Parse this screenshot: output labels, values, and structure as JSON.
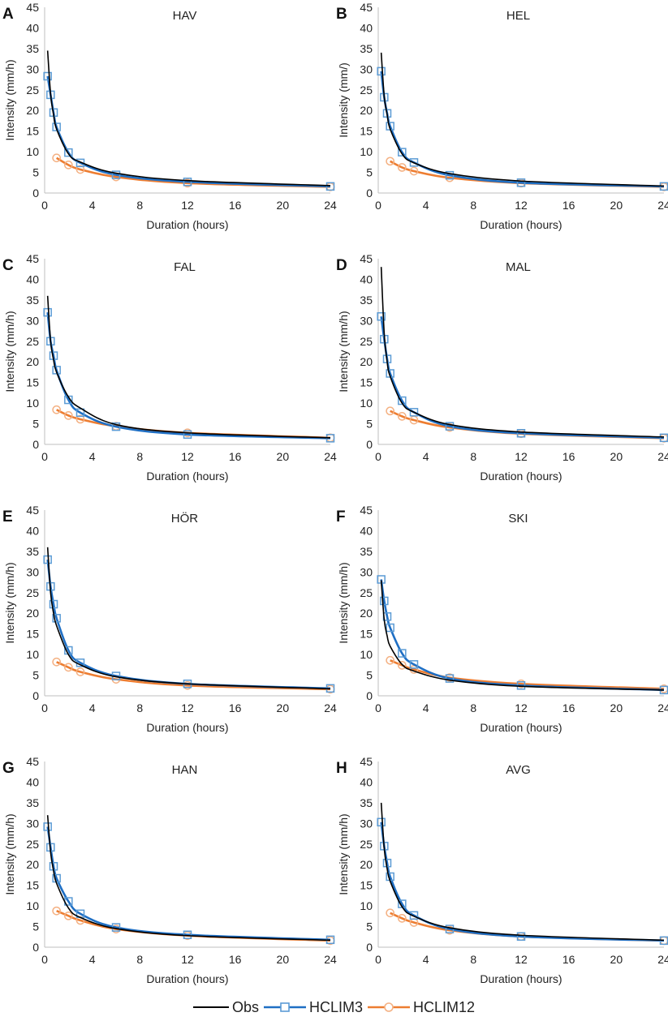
{
  "colors": {
    "obs": "#000000",
    "hclim3": "#1f6fc4",
    "hclim3_marker": "#5b9bd5",
    "hclim12": "#ed7d31",
    "hclim12_marker": "#f4b183",
    "axis": "#bfbfbf"
  },
  "axis_labels": {
    "x": "Duration (hours)",
    "y": "Intensity (mm/h)"
  },
  "legend": [
    {
      "key": "obs",
      "label": "Obs"
    },
    {
      "key": "hclim3",
      "label": "HCLIM3"
    },
    {
      "key": "hclim12",
      "label": "HCLIM12"
    }
  ],
  "chart_data": [
    {
      "type": "line",
      "panel": "A",
      "title": "HAV",
      "xlabel": "Duration (hours)",
      "ylabel": "Intensity (mm/h)",
      "xlim": [
        0,
        24
      ],
      "ylim": [
        0,
        45
      ],
      "xticks": [
        0,
        4,
        8,
        12,
        16,
        20,
        24
      ],
      "yticks": [
        0,
        5,
        10,
        15,
        20,
        25,
        30,
        35,
        40,
        45
      ],
      "series": [
        {
          "name": "Obs",
          "key": "obs",
          "x": [
            0.25,
            0.5,
            0.75,
            1,
            2,
            3,
            6,
            12,
            24
          ],
          "y": [
            34.5,
            24,
            19,
            15.5,
            9.5,
            7.5,
            4.8,
            3.0,
            1.8
          ]
        },
        {
          "name": "HCLIM3",
          "key": "hclim3",
          "x": [
            0.25,
            0.5,
            0.75,
            1,
            2,
            3,
            6,
            12,
            24
          ],
          "y": [
            28.3,
            23.8,
            19.5,
            16.0,
            9.8,
            7.3,
            4.4,
            2.7,
            1.6
          ]
        },
        {
          "name": "HCLIM12",
          "key": "hclim12",
          "x": [
            1,
            2,
            3,
            6,
            12,
            24
          ],
          "y": [
            8.5,
            6.8,
            5.7,
            3.9,
            2.4,
            1.5
          ]
        }
      ]
    },
    {
      "type": "line",
      "panel": "B",
      "title": "HEL",
      "xlabel": "Duration (hours)",
      "ylabel": "Intensity (mm/)",
      "xlim": [
        0,
        24
      ],
      "ylim": [
        0,
        45
      ],
      "xticks": [
        0,
        4,
        8,
        12,
        16,
        20,
        24
      ],
      "yticks": [
        0,
        5,
        10,
        15,
        20,
        25,
        30,
        35,
        40,
        45
      ],
      "series": [
        {
          "name": "Obs",
          "key": "obs",
          "x": [
            0.25,
            0.5,
            0.75,
            1,
            2,
            3,
            6,
            12,
            24
          ],
          "y": [
            34,
            23.5,
            19,
            15.5,
            9.5,
            7.3,
            4.7,
            2.9,
            1.7
          ]
        },
        {
          "name": "HCLIM3",
          "key": "hclim3",
          "x": [
            0.25,
            0.5,
            0.75,
            1,
            2,
            3,
            6,
            12,
            24
          ],
          "y": [
            29.5,
            23.2,
            19.3,
            16.2,
            9.9,
            7.4,
            4.3,
            2.5,
            1.6
          ]
        },
        {
          "name": "HCLIM12",
          "key": "hclim12",
          "x": [
            1,
            2,
            3,
            6,
            12,
            24
          ],
          "y": [
            7.7,
            6.2,
            5.3,
            3.7,
            2.4,
            1.5
          ]
        }
      ]
    },
    {
      "type": "line",
      "panel": "C",
      "title": "FAL",
      "xlabel": "Duration (hours)",
      "ylabel": "Intensity (mm/h)",
      "xlim": [
        0,
        24
      ],
      "ylim": [
        0,
        45
      ],
      "xticks": [
        0,
        4,
        8,
        12,
        16,
        20,
        24
      ],
      "yticks": [
        0,
        5,
        10,
        15,
        20,
        25,
        30,
        35,
        40,
        45
      ],
      "series": [
        {
          "name": "Obs",
          "key": "obs",
          "x": [
            0.25,
            0.5,
            0.75,
            1,
            2,
            3,
            6,
            12,
            24
          ],
          "y": [
            36,
            25,
            20.5,
            17.5,
            11.5,
            8.8,
            4.8,
            2.8,
            1.6
          ]
        },
        {
          "name": "HCLIM3",
          "key": "hclim3",
          "x": [
            0.25,
            0.5,
            0.75,
            1,
            2,
            3,
            6,
            12,
            24
          ],
          "y": [
            32,
            25,
            21.5,
            18,
            10.8,
            7.7,
            4.3,
            2.4,
            1.5
          ]
        },
        {
          "name": "HCLIM12",
          "key": "hclim12",
          "x": [
            1,
            2,
            3,
            6,
            12,
            24
          ],
          "y": [
            8.4,
            7.0,
            6.1,
            4.4,
            2.8,
            1.6
          ]
        }
      ]
    },
    {
      "type": "line",
      "panel": "D",
      "title": "MAL",
      "xlabel": "Duration (hours)",
      "ylabel": "Intensity (mm/h)",
      "xlim": [
        0,
        24
      ],
      "ylim": [
        0,
        45
      ],
      "xticks": [
        0,
        4,
        8,
        12,
        16,
        20,
        24
      ],
      "yticks": [
        0,
        5,
        10,
        15,
        20,
        25,
        30,
        35,
        40,
        45
      ],
      "series": [
        {
          "name": "Obs",
          "key": "obs",
          "x": [
            0.25,
            0.5,
            0.75,
            1,
            2,
            3,
            6,
            12,
            24
          ],
          "y": [
            43,
            27,
            20,
            16.5,
            10,
            7.8,
            4.8,
            3.0,
            1.8
          ]
        },
        {
          "name": "HCLIM3",
          "key": "hclim3",
          "x": [
            0.25,
            0.5,
            0.75,
            1,
            2,
            3,
            6,
            12,
            24
          ],
          "y": [
            31,
            25.5,
            20.7,
            17.2,
            10.6,
            7.8,
            4.4,
            2.7,
            1.6
          ]
        },
        {
          "name": "HCLIM12",
          "key": "hclim12",
          "x": [
            1,
            2,
            3,
            6,
            12,
            24
          ],
          "y": [
            8.1,
            6.8,
            5.9,
            4.1,
            2.6,
            1.5
          ]
        }
      ]
    },
    {
      "type": "line",
      "panel": "E",
      "title": "HÖR",
      "xlabel": "Duration (hours)",
      "ylabel": "Intensity (mm/h)",
      "xlim": [
        0,
        24
      ],
      "ylim": [
        0,
        45
      ],
      "xticks": [
        0,
        4,
        8,
        12,
        16,
        20,
        24
      ],
      "yticks": [
        0,
        5,
        10,
        15,
        20,
        25,
        30,
        35,
        40,
        45
      ],
      "series": [
        {
          "name": "Obs",
          "key": "obs",
          "x": [
            0.25,
            0.5,
            0.75,
            1,
            2,
            3,
            6,
            12,
            24
          ],
          "y": [
            36,
            25,
            20,
            17,
            10,
            7.5,
            4.6,
            2.9,
            1.7
          ]
        },
        {
          "name": "HCLIM3",
          "key": "hclim3",
          "x": [
            0.25,
            0.5,
            0.75,
            1,
            2,
            3,
            6,
            12,
            24
          ],
          "y": [
            33,
            26.5,
            22.2,
            18.8,
            11,
            8,
            4.8,
            2.9,
            1.8
          ]
        },
        {
          "name": "HCLIM12",
          "key": "hclim12",
          "x": [
            1,
            2,
            3,
            6,
            12,
            24
          ],
          "y": [
            8.2,
            6.9,
            5.8,
            4.0,
            2.5,
            1.6
          ]
        }
      ]
    },
    {
      "type": "line",
      "panel": "F",
      "title": "SKI",
      "xlabel": "Duration (hours)",
      "ylabel": "Intensity (mm/h)",
      "xlim": [
        0,
        24
      ],
      "ylim": [
        0,
        45
      ],
      "xticks": [
        0,
        4,
        8,
        12,
        16,
        20,
        24
      ],
      "yticks": [
        0,
        5,
        10,
        15,
        20,
        25,
        30,
        35,
        40,
        45
      ],
      "series": [
        {
          "name": "Obs",
          "key": "obs",
          "x": [
            0.25,
            0.5,
            0.75,
            1,
            2,
            3,
            6,
            12,
            24
          ],
          "y": [
            28,
            18.5,
            14.5,
            12,
            7.6,
            6.0,
            3.8,
            2.3,
            1.4
          ]
        },
        {
          "name": "HCLIM3",
          "key": "hclim3",
          "x": [
            0.25,
            0.5,
            0.75,
            1,
            2,
            3,
            6,
            12,
            24
          ],
          "y": [
            28.2,
            23,
            19.2,
            16.5,
            10.3,
            7.6,
            4.2,
            2.5,
            1.4
          ]
        },
        {
          "name": "HCLIM12",
          "key": "hclim12",
          "x": [
            1,
            2,
            3,
            6,
            12,
            24
          ],
          "y": [
            8.6,
            7.4,
            6.4,
            4.4,
            2.9,
            1.7
          ]
        }
      ]
    },
    {
      "type": "line",
      "panel": "G",
      "title": "HAN",
      "xlabel": "Duration (hours)",
      "ylabel": "Intensity (mm/h)",
      "xlim": [
        0,
        24
      ],
      "ylim": [
        0,
        45
      ],
      "xticks": [
        0,
        4,
        8,
        12,
        16,
        20,
        24
      ],
      "yticks": [
        0,
        5,
        10,
        15,
        20,
        25,
        30,
        35,
        40,
        45
      ],
      "series": [
        {
          "name": "Obs",
          "key": "obs",
          "x": [
            0.25,
            0.5,
            0.75,
            1,
            2,
            3,
            6,
            12,
            24
          ],
          "y": [
            32,
            23,
            18.5,
            15.5,
            9.5,
            7.2,
            4.5,
            2.8,
            1.7
          ]
        },
        {
          "name": "HCLIM3",
          "key": "hclim3",
          "x": [
            0.25,
            0.5,
            0.75,
            1,
            2,
            3,
            6,
            12,
            24
          ],
          "y": [
            29.2,
            24.2,
            19.6,
            16.7,
            11.1,
            8.1,
            4.8,
            3.0,
            1.8
          ]
        },
        {
          "name": "HCLIM12",
          "key": "hclim12",
          "x": [
            1,
            2,
            3,
            6,
            12,
            24
          ],
          "y": [
            8.8,
            7.6,
            6.5,
            4.4,
            2.8,
            1.6
          ]
        }
      ]
    },
    {
      "type": "line",
      "panel": "H",
      "title": "AVG",
      "xlabel": "Duration (hours)",
      "ylabel": "Intensity (mm/h)",
      "xlim": [
        0,
        24
      ],
      "ylim": [
        0,
        45
      ],
      "xticks": [
        0,
        4,
        8,
        12,
        16,
        20,
        24
      ],
      "yticks": [
        0,
        5,
        10,
        15,
        20,
        25,
        30,
        35,
        40,
        45
      ],
      "series": [
        {
          "name": "Obs",
          "key": "obs",
          "x": [
            0.25,
            0.5,
            0.75,
            1,
            2,
            3,
            6,
            12,
            24
          ],
          "y": [
            35,
            24,
            19,
            16,
            9.8,
            7.5,
            4.7,
            2.9,
            1.7
          ]
        },
        {
          "name": "HCLIM3",
          "key": "hclim3",
          "x": [
            0.25,
            0.5,
            0.75,
            1,
            2,
            3,
            6,
            12,
            24
          ],
          "y": [
            30.3,
            24.5,
            20.4,
            17.1,
            10.5,
            7.7,
            4.4,
            2.6,
            1.6
          ]
        },
        {
          "name": "HCLIM12",
          "key": "hclim12",
          "x": [
            1,
            2,
            3,
            6,
            12,
            24
          ],
          "y": [
            8.3,
            7.0,
            6.0,
            4.1,
            2.6,
            1.6
          ]
        }
      ]
    }
  ]
}
